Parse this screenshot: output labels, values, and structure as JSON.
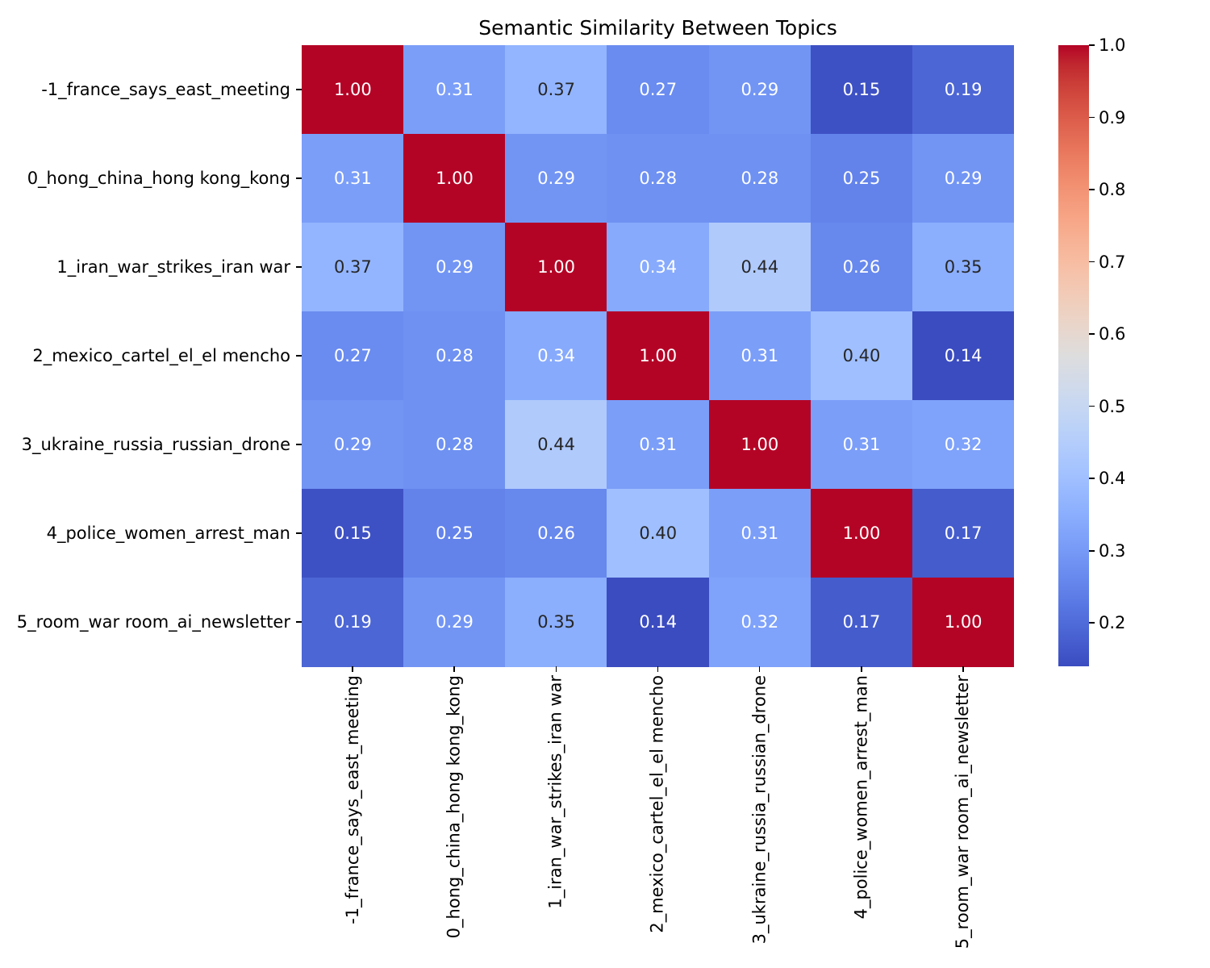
{
  "chart_data": {
    "type": "heatmap",
    "title": "Semantic Similarity Between Topics",
    "categories": [
      "-1_france_says_east_meeting",
      "0_hong_china_hong kong_kong",
      "1_iran_war_strikes_iran war",
      "2_mexico_cartel_el_el mencho",
      "3_ukraine_russia_russian_drone",
      "4_police_women_arrest_man",
      "5_room_war room_ai_newsletter"
    ],
    "matrix": [
      [
        1.0,
        0.31,
        0.37,
        0.27,
        0.29,
        0.15,
        0.19
      ],
      [
        0.31,
        1.0,
        0.29,
        0.28,
        0.28,
        0.25,
        0.29
      ],
      [
        0.37,
        0.29,
        1.0,
        0.34,
        0.44,
        0.26,
        0.35
      ],
      [
        0.27,
        0.28,
        0.34,
        1.0,
        0.31,
        0.4,
        0.14
      ],
      [
        0.29,
        0.28,
        0.44,
        0.31,
        1.0,
        0.31,
        0.32
      ],
      [
        0.15,
        0.25,
        0.26,
        0.4,
        0.31,
        1.0,
        0.17
      ],
      [
        0.19,
        0.29,
        0.35,
        0.14,
        0.32,
        0.17,
        1.0
      ]
    ],
    "annotation_decimals": 2,
    "colormap": "coolwarm",
    "vmin": 0.14,
    "vmax": 1.0,
    "colorbar_ticks": [
      "1.0",
      "0.9",
      "0.8",
      "0.7",
      "0.6",
      "0.5",
      "0.4",
      "0.3",
      "0.2"
    ],
    "legend_position": "right",
    "grid": false,
    "colors": {
      "colormap_min": "#3b4cc0",
      "colormap_mid": "#dddddd",
      "colormap_max": "#b40426",
      "annotation_light": "#ffffff",
      "annotation_dark": "#262626",
      "tick_color": "#000000",
      "background": "#ffffff"
    }
  }
}
